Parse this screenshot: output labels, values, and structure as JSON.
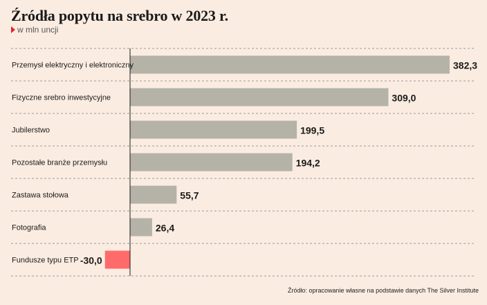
{
  "header": {
    "title": "Źródła popytu na srebro w 2023 r.",
    "unit": "w mln uncji"
  },
  "footer": {
    "source": "Źródło: opracowanie własne na podstawie danych The Silver Institute"
  },
  "colors": {
    "background": "#fbece1",
    "positive_bar": "#b5b3a8",
    "negative_bar": "#ff6b6b",
    "unit_marker": "#e0262c"
  },
  "chart_data": {
    "type": "bar",
    "orientation": "horizontal",
    "categories": [
      "Przemysł elektryczny i elektroniczny",
      "Fizyczne srebro inwestycyjne",
      "Jubilerstwo",
      "Pozostałe branże przemysłu",
      "Zastawa stołowa",
      "Fotografia",
      "Fundusze typu ETP"
    ],
    "values": [
      382.3,
      309.0,
      199.5,
      194.2,
      55.7,
      26.4,
      -30.0
    ],
    "value_labels": [
      "382,3",
      "309,0",
      "199,5",
      "194,2",
      "55,7",
      "26,4",
      "-30,0"
    ],
    "title": "Źródła popytu na srebro w 2023 r.",
    "subtitle": "w mln uncji",
    "xlim": [
      -30,
      382.3
    ],
    "grid": "dashed separators between rows",
    "legend": "none"
  }
}
